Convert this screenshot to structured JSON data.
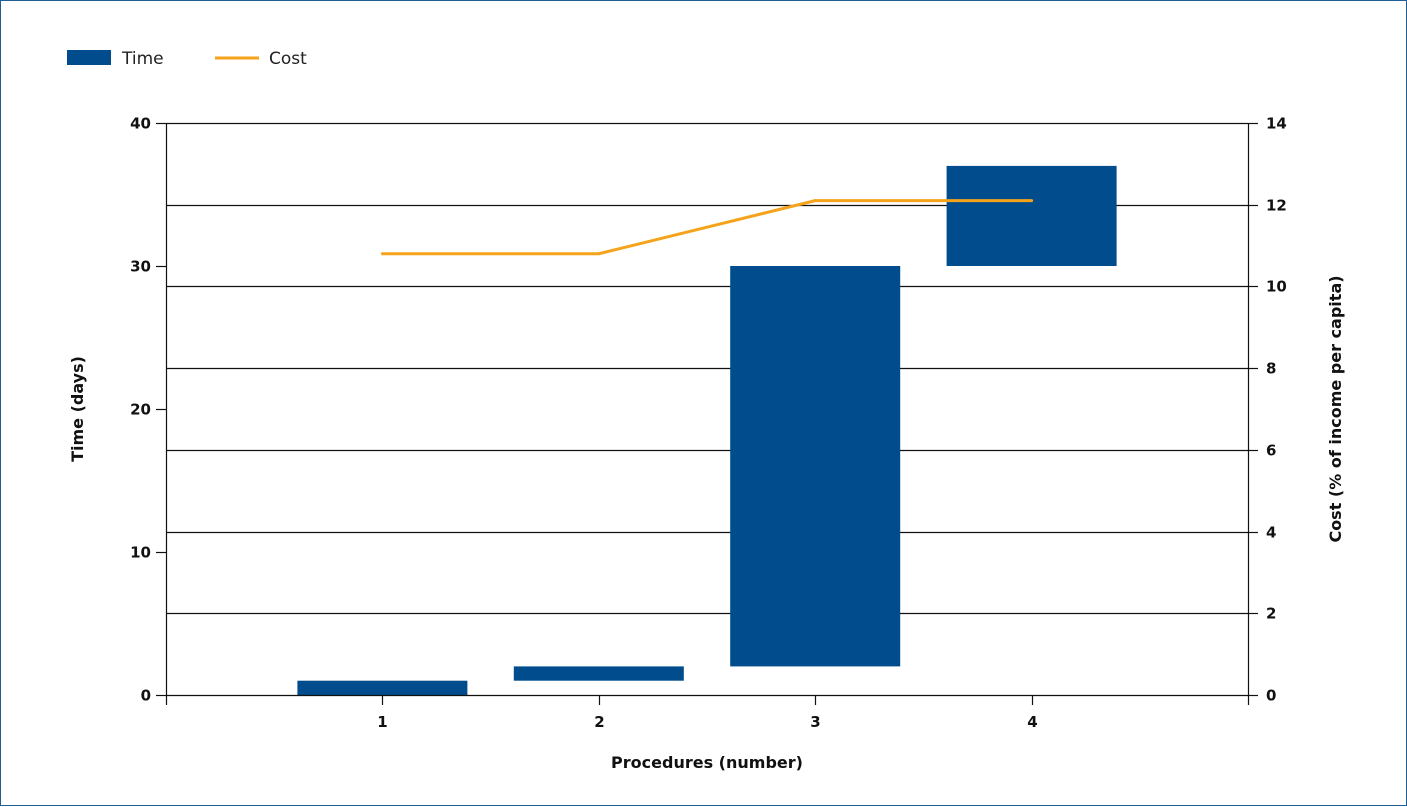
{
  "chart_data": {
    "type": "bar",
    "title": "",
    "xlabel": "Procedures (number)",
    "ylabel": "Time (days)",
    "y2label": "Cost (% of income per capita)",
    "categories": [
      "1",
      "2",
      "3",
      "4"
    ],
    "ylim": [
      0,
      40
    ],
    "y2lim": [
      0,
      14
    ],
    "yticks": [
      0,
      10,
      20,
      30,
      40
    ],
    "y2ticks": [
      0,
      2,
      4,
      6,
      8,
      10,
      12,
      14
    ],
    "grid": true,
    "legend_position": "top-left",
    "series": [
      {
        "name": "Time",
        "kind": "floating-bar",
        "axis": "left",
        "color": "#004c8c",
        "ranges": [
          [
            0,
            1
          ],
          [
            1,
            2
          ],
          [
            2,
            30
          ],
          [
            30,
            37
          ]
        ]
      },
      {
        "name": "Cost",
        "kind": "line",
        "axis": "right",
        "color": "#f5a31a",
        "values": [
          10.8,
          10.8,
          12.1,
          12.1
        ]
      }
    ]
  }
}
